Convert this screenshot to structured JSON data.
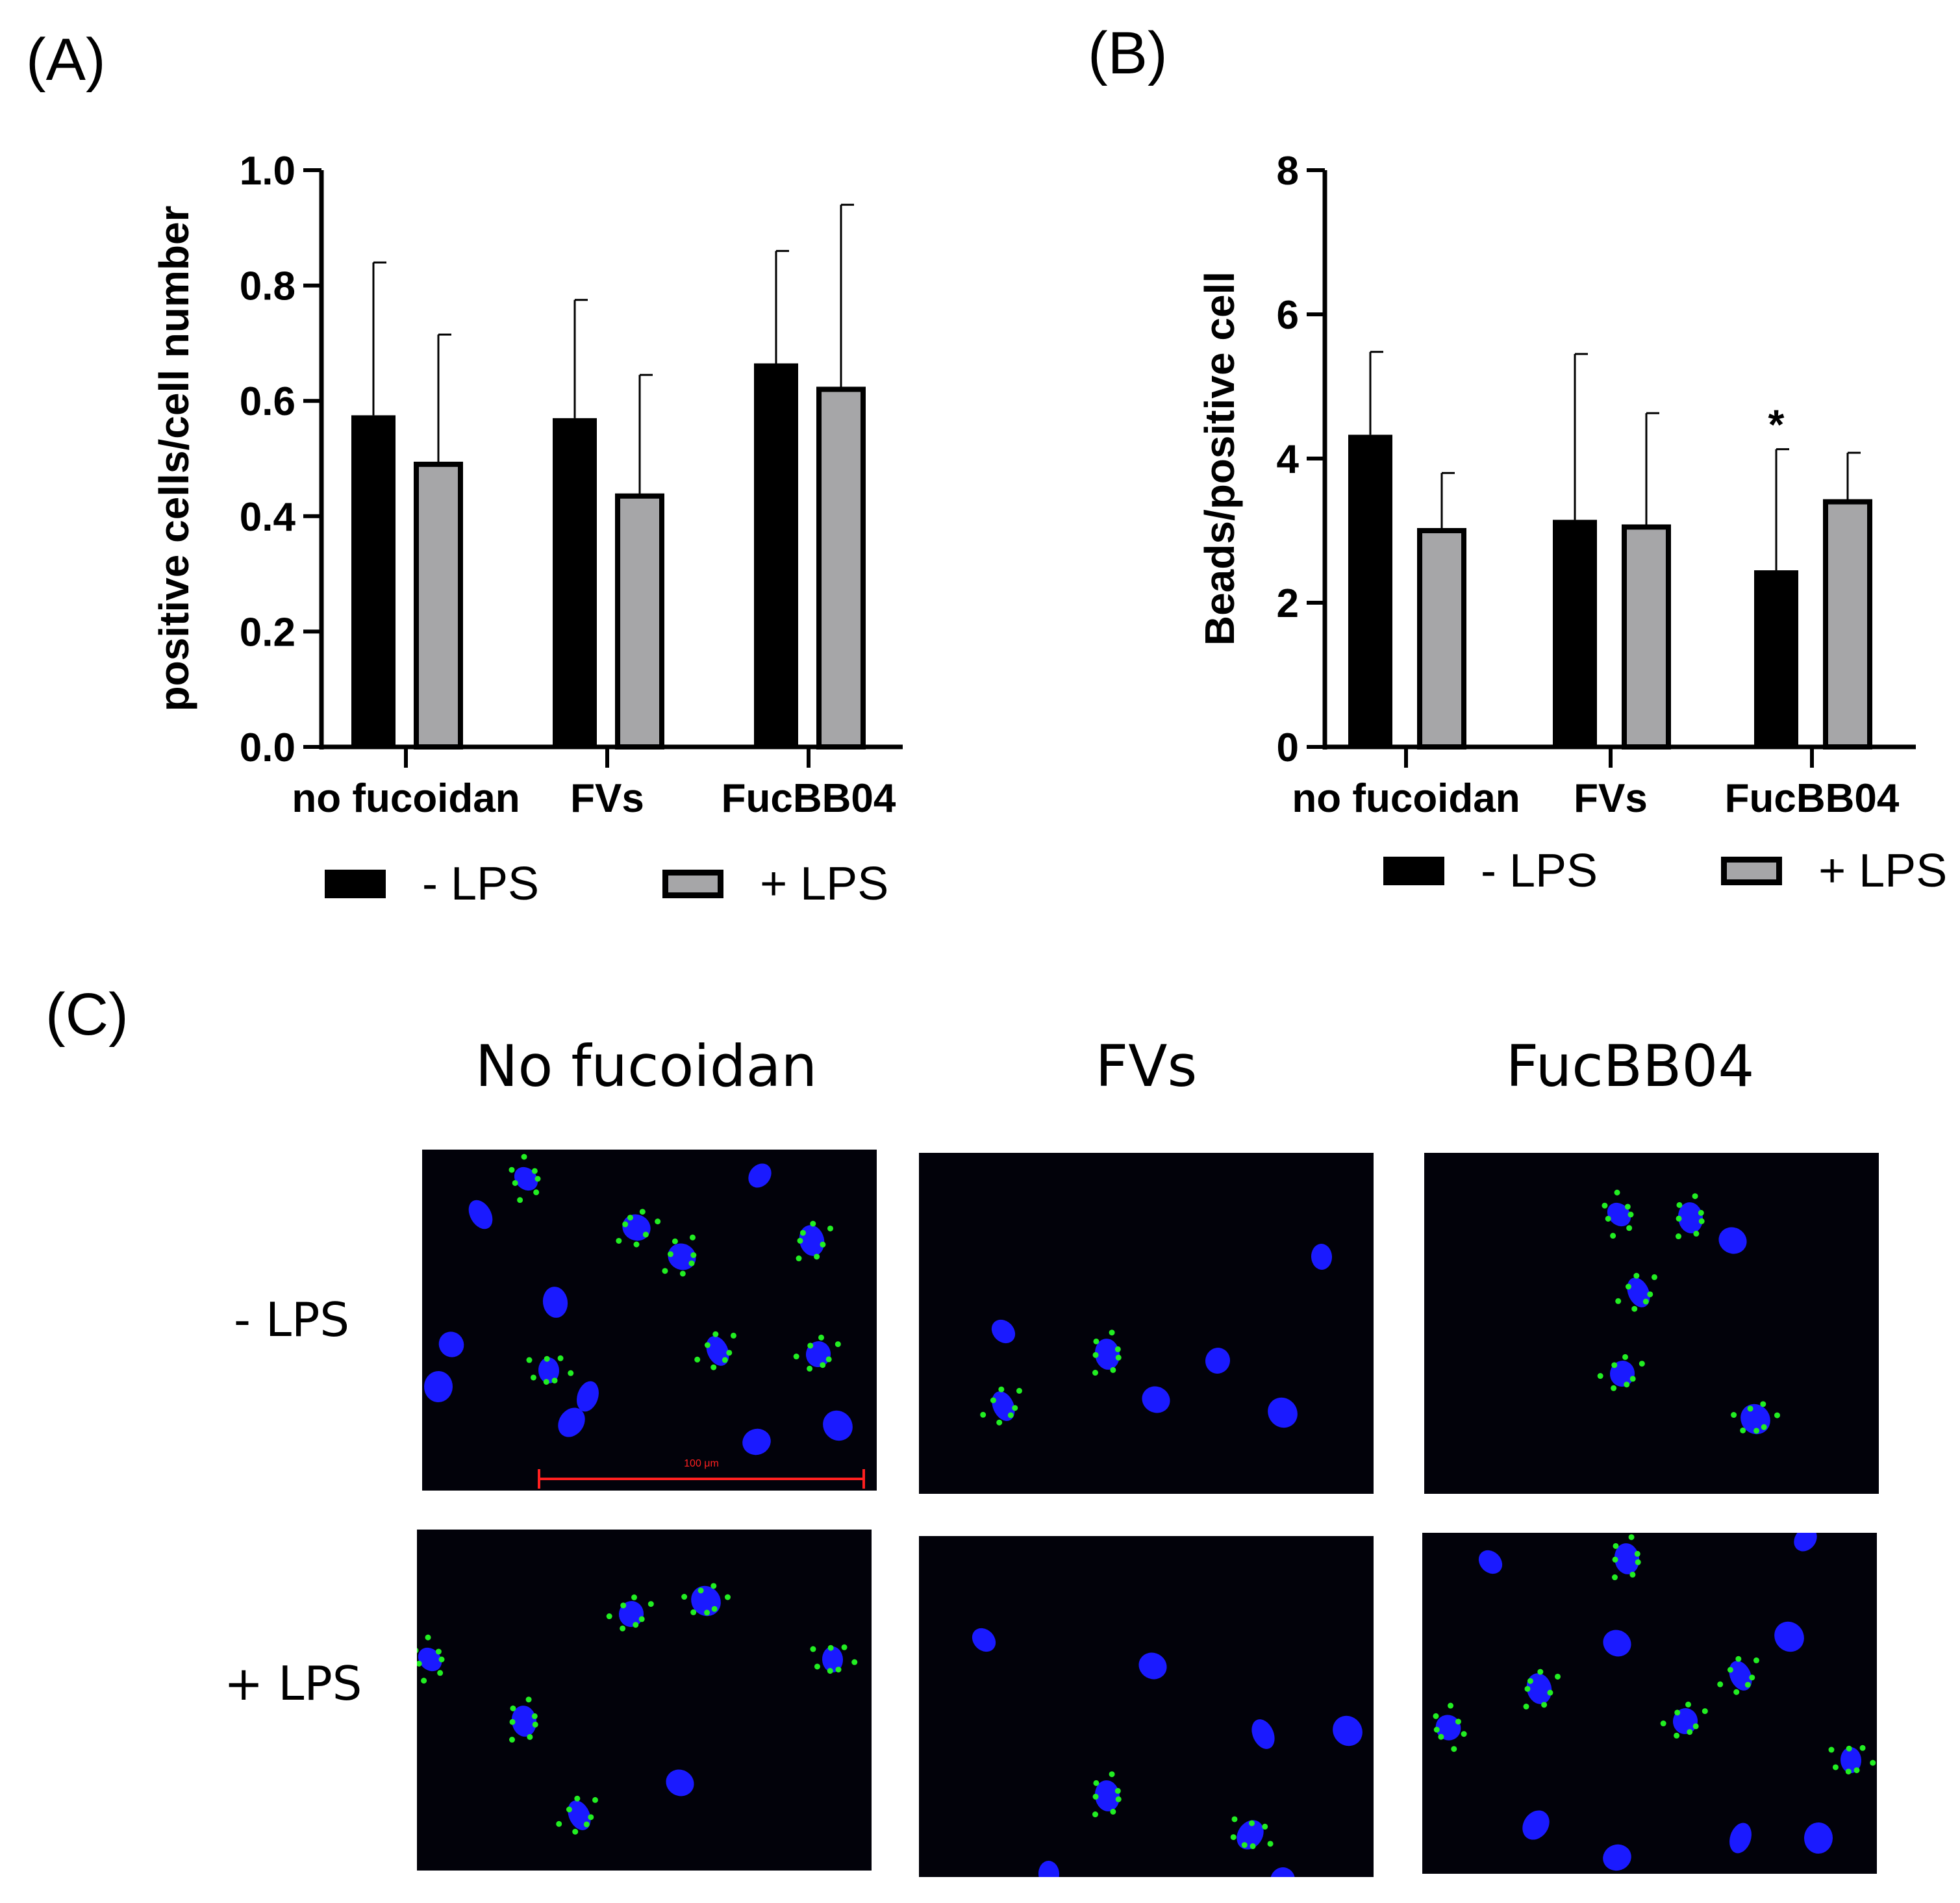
{
  "panels": {
    "a": "(A)",
    "b": "(B)",
    "c": "(C)"
  },
  "legend": {
    "minus": "- LPS",
    "plus": "+ LPS"
  },
  "colors": {
    "minus_lps": "#000000",
    "plus_lps": "#a6a6a8",
    "nucleus": "#1a1aff",
    "beads": "#22ee22",
    "scale_bar": "#ff2020"
  },
  "chart_data": [
    {
      "type": "bar",
      "ylabel": "positive cells/cell number",
      "xlabel": "",
      "ylim": [
        0,
        1.0
      ],
      "yticks": [
        "0.0",
        "0.2",
        "0.4",
        "0.6",
        "0.8",
        "1.0"
      ],
      "categories": [
        "no fucoidan",
        "FVs",
        "FucBB04"
      ],
      "series": [
        {
          "name": "- LPS",
          "values": [
            0.575,
            0.57,
            0.665
          ],
          "error": [
            0.265,
            0.205,
            0.195
          ]
        },
        {
          "name": "+ LPS",
          "values": [
            0.49,
            0.435,
            0.62
          ],
          "error": [
            0.225,
            0.21,
            0.32
          ]
        }
      ],
      "annotations": []
    },
    {
      "type": "bar",
      "ylabel": "Beads/positive cell",
      "xlabel": "",
      "ylim": [
        0,
        8
      ],
      "yticks": [
        "0",
        "2",
        "4",
        "6",
        "8"
      ],
      "categories": [
        "no fucoidan",
        "FVs",
        "FucBB04"
      ],
      "series": [
        {
          "name": "- LPS",
          "values": [
            4.33,
            3.15,
            2.45
          ],
          "error": [
            1.15,
            2.3,
            1.68
          ]
        },
        {
          "name": "+ LPS",
          "values": [
            3.0,
            3.05,
            3.4
          ],
          "error": [
            0.8,
            1.58,
            0.68
          ]
        }
      ],
      "annotations": [
        {
          "text": "*",
          "category": "FucBB04",
          "series": "- LPS"
        }
      ]
    }
  ],
  "micrographs": {
    "columns": [
      "No fucoidan",
      "FVs",
      "FucBB04"
    ],
    "rows": [
      "- LPS",
      "+ LPS"
    ],
    "scale_bar_label": "100 μm"
  }
}
